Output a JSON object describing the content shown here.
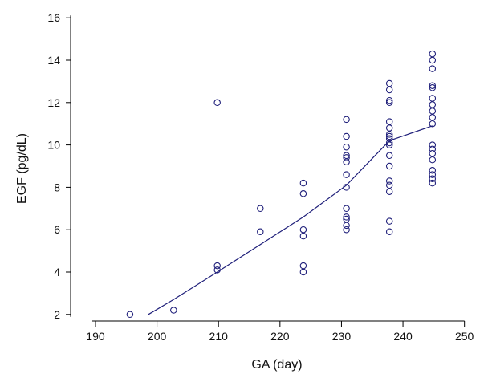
{
  "chart_data": {
    "type": "scatter",
    "title": "",
    "xlabel": "GA (day)",
    "ylabel": "EGF (pg/dL)",
    "xlim": [
      187,
      252
    ],
    "ylim": [
      1.5,
      16.5
    ],
    "xticks": [
      190,
      200,
      210,
      220,
      230,
      240,
      250
    ],
    "yticks": [
      2,
      4,
      6,
      8,
      10,
      12,
      14,
      16
    ],
    "grid": false,
    "legend": "none",
    "colors": {
      "marker": "#1f1f7a",
      "line": "#1f1f7a",
      "axis": "#000000"
    },
    "series": [
      {
        "type": "scatter",
        "points": [
          [
            195.6,
            2.0
          ],
          [
            202.7,
            2.2
          ],
          [
            209.8,
            4.1
          ],
          [
            209.8,
            4.3
          ],
          [
            209.8,
            12.0
          ],
          [
            216.8,
            5.9
          ],
          [
            216.8,
            7.0
          ],
          [
            223.8,
            4.0
          ],
          [
            223.8,
            4.3
          ],
          [
            223.8,
            5.7
          ],
          [
            223.8,
            6.0
          ],
          [
            223.8,
            7.7
          ],
          [
            223.8,
            8.2
          ],
          [
            230.8,
            6.0
          ],
          [
            230.8,
            6.2
          ],
          [
            230.8,
            6.5
          ],
          [
            230.8,
            6.6
          ],
          [
            230.8,
            7.0
          ],
          [
            230.8,
            8.0
          ],
          [
            230.8,
            8.6
          ],
          [
            230.8,
            9.2
          ],
          [
            230.8,
            9.4
          ],
          [
            230.8,
            9.5
          ],
          [
            230.8,
            9.9
          ],
          [
            230.8,
            10.4
          ],
          [
            230.8,
            11.2
          ],
          [
            237.8,
            5.9
          ],
          [
            237.8,
            6.4
          ],
          [
            237.8,
            7.8
          ],
          [
            237.8,
            8.1
          ],
          [
            237.8,
            8.3
          ],
          [
            237.8,
            9.0
          ],
          [
            237.8,
            9.5
          ],
          [
            237.8,
            10.0
          ],
          [
            237.8,
            10.1
          ],
          [
            237.8,
            10.3
          ],
          [
            237.8,
            10.4
          ],
          [
            237.8,
            10.5
          ],
          [
            237.8,
            10.8
          ],
          [
            237.8,
            11.1
          ],
          [
            237.8,
            12.0
          ],
          [
            237.8,
            12.1
          ],
          [
            237.8,
            12.6
          ],
          [
            237.8,
            12.9
          ],
          [
            244.8,
            8.2
          ],
          [
            244.8,
            8.4
          ],
          [
            244.8,
            8.6
          ],
          [
            244.8,
            8.8
          ],
          [
            244.8,
            9.3
          ],
          [
            244.8,
            9.6
          ],
          [
            244.8,
            9.8
          ],
          [
            244.8,
            10.0
          ],
          [
            244.8,
            11.0
          ],
          [
            244.8,
            11.3
          ],
          [
            244.8,
            11.6
          ],
          [
            244.8,
            11.9
          ],
          [
            244.8,
            12.2
          ],
          [
            244.8,
            12.7
          ],
          [
            244.8,
            12.8
          ],
          [
            244.8,
            13.6
          ],
          [
            244.8,
            14.0
          ],
          [
            244.8,
            14.3
          ]
        ]
      },
      {
        "type": "line",
        "points": [
          [
            198.6,
            2.0
          ],
          [
            202.7,
            2.7
          ],
          [
            209.8,
            4.0
          ],
          [
            216.8,
            5.3
          ],
          [
            223.8,
            6.6
          ],
          [
            230.8,
            8.1
          ],
          [
            237.8,
            10.2
          ],
          [
            244.8,
            10.9
          ]
        ]
      }
    ]
  }
}
